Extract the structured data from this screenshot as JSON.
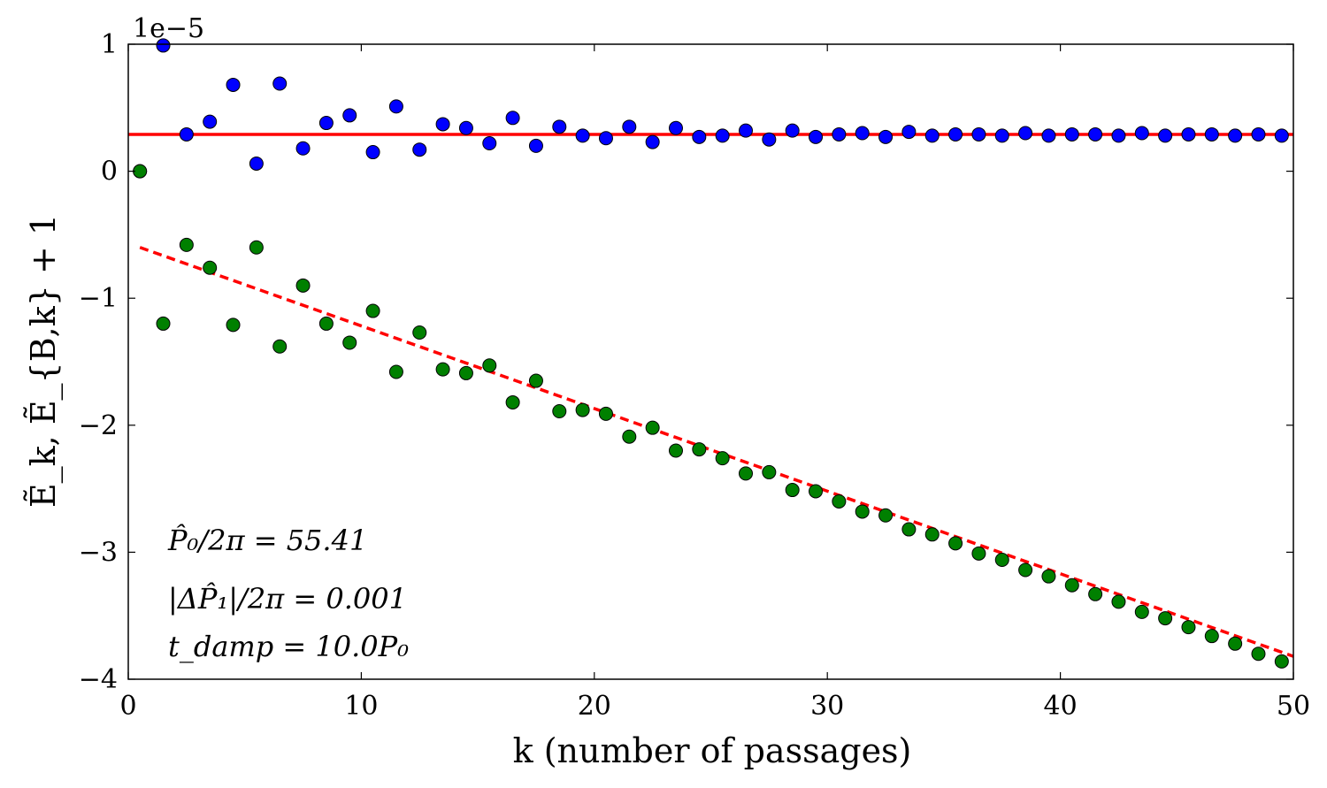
{
  "chart_data": {
    "type": "scatter",
    "title": "",
    "xlabel": "k (number of passages)",
    "ylabel": "Ẽ_k,  Ẽ_{B,k} + 1",
    "xlim": [
      0,
      50
    ],
    "ylim": [
      -4,
      1
    ],
    "y_scale_note": "1e−5",
    "xticks": [
      0,
      10,
      20,
      30,
      40,
      50
    ],
    "yticks": [
      -4,
      -3,
      -2,
      -1,
      0,
      1
    ],
    "ytick_labels": [
      "−4",
      "−3",
      "−2",
      "−1",
      "0",
      "1"
    ],
    "grid": false,
    "series": [
      {
        "name": "E_k",
        "color": "#0000ff",
        "marker": "circle",
        "x": [
          0.5,
          1.5,
          2.5,
          3.5,
          4.5,
          5.5,
          6.5,
          7.5,
          8.5,
          9.5,
          10.5,
          11.5,
          12.5,
          13.5,
          14.5,
          15.5,
          16.5,
          17.5,
          18.5,
          19.5,
          20.5,
          21.5,
          22.5,
          23.5,
          24.5,
          25.5,
          26.5,
          27.5,
          28.5,
          29.5,
          30.5,
          31.5,
          32.5,
          33.5,
          34.5,
          35.5,
          36.5,
          37.5,
          38.5,
          39.5,
          40.5,
          41.5,
          42.5,
          43.5,
          44.5,
          45.5,
          46.5,
          47.5,
          48.5,
          49.5
        ],
        "y": [
          0.0,
          0.99,
          0.29,
          0.39,
          0.68,
          0.06,
          0.69,
          0.18,
          0.38,
          0.44,
          0.15,
          0.51,
          0.17,
          0.37,
          0.34,
          0.22,
          0.42,
          0.2,
          0.35,
          0.28,
          0.26,
          0.35,
          0.23,
          0.34,
          0.27,
          0.28,
          0.32,
          0.25,
          0.32,
          0.27,
          0.29,
          0.3,
          0.27,
          0.31,
          0.28,
          0.29,
          0.29,
          0.28,
          0.3,
          0.28,
          0.29,
          0.29,
          0.28,
          0.3,
          0.28,
          0.29,
          0.29,
          0.28,
          0.29,
          0.28
        ]
      },
      {
        "name": "E_B,k + 1",
        "color": "#008000",
        "marker": "circle",
        "x": [
          0.5,
          1.5,
          2.5,
          3.5,
          4.5,
          5.5,
          6.5,
          7.5,
          8.5,
          9.5,
          10.5,
          11.5,
          12.5,
          13.5,
          14.5,
          15.5,
          16.5,
          17.5,
          18.5,
          19.5,
          20.5,
          21.5,
          22.5,
          23.5,
          24.5,
          25.5,
          26.5,
          27.5,
          28.5,
          29.5,
          30.5,
          31.5,
          32.5,
          33.5,
          34.5,
          35.5,
          36.5,
          37.5,
          38.5,
          39.5,
          40.5,
          41.5,
          42.5,
          43.5,
          44.5,
          45.5,
          46.5,
          47.5,
          48.5,
          49.5
        ],
        "y": [
          0.0,
          -1.2,
          -0.58,
          -0.76,
          -1.21,
          -0.6,
          -1.38,
          -0.9,
          -1.2,
          -1.35,
          -1.1,
          -1.58,
          -1.27,
          -1.56,
          -1.59,
          -1.53,
          -1.82,
          -1.65,
          -1.89,
          -1.88,
          -1.91,
          -2.09,
          -2.02,
          -2.2,
          -2.19,
          -2.26,
          -2.38,
          -2.37,
          -2.51,
          -2.52,
          -2.6,
          -2.68,
          -2.71,
          -2.82,
          -2.86,
          -2.93,
          -3.01,
          -3.06,
          -3.14,
          -3.19,
          -3.26,
          -3.33,
          -3.39,
          -3.47,
          -3.52,
          -3.59,
          -3.66,
          -3.72,
          -3.8,
          -3.86
        ]
      }
    ],
    "reference_lines": [
      {
        "name": "mean E_k",
        "style": "solid",
        "color": "#ff0000",
        "x": [
          0,
          50
        ],
        "y": [
          0.29,
          0.29
        ]
      },
      {
        "name": "linear fit E_B,k + 1",
        "style": "dashed",
        "color": "#ff0000",
        "x": [
          0.5,
          50
        ],
        "y": [
          -0.6,
          -3.82
        ]
      }
    ],
    "annotations": [
      "P̂₀/2π = 55.41",
      "|ΔP̂₁|/2π = 0.001",
      "t_damp = 10.0P₀"
    ]
  }
}
